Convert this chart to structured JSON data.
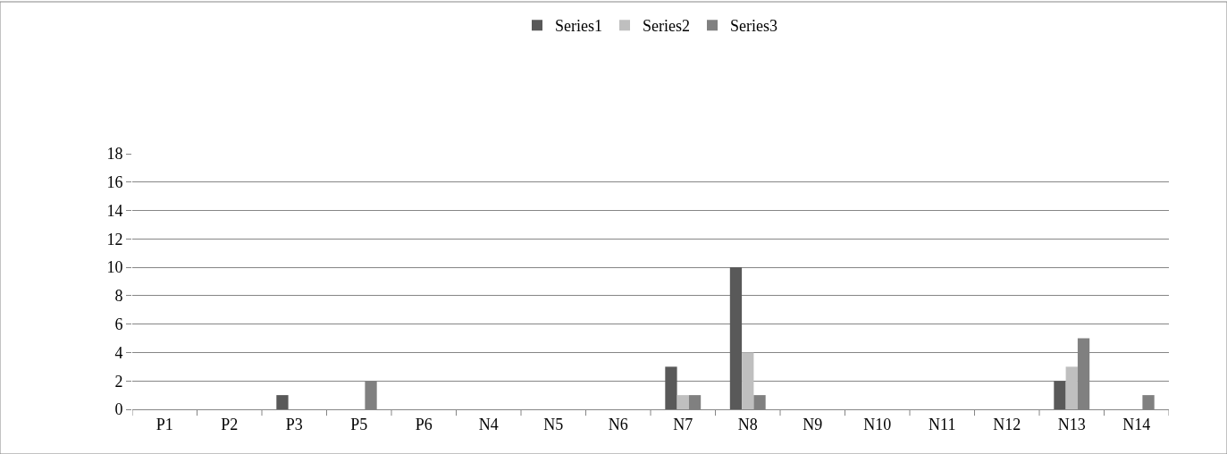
{
  "chart_data": {
    "type": "bar",
    "categories": [
      "P1",
      "P2",
      "P3",
      "P5",
      "P6",
      "N4",
      "N5",
      "N6",
      "N7",
      "N8",
      "N9",
      "N10",
      "N11",
      "N12",
      "N13",
      "N14"
    ],
    "series": [
      {
        "name": "Series1",
        "color": "#595959",
        "values": [
          0,
          0,
          1,
          0,
          0,
          0,
          0,
          0,
          3,
          10,
          0,
          0,
          0,
          0,
          2,
          0
        ]
      },
      {
        "name": "Series2",
        "color": "#bfbfbf",
        "values": [
          0,
          0,
          0,
          0,
          0,
          0,
          0,
          0,
          1,
          4,
          0,
          0,
          0,
          0,
          3,
          0
        ]
      },
      {
        "name": "Series3",
        "color": "#808080",
        "values": [
          0,
          0,
          0,
          2,
          0,
          0,
          0,
          0,
          1,
          1,
          0,
          0,
          0,
          0,
          5,
          1
        ]
      }
    ],
    "ylim": [
      0,
      18
    ],
    "yticks": [
      0,
      2,
      4,
      6,
      8,
      10,
      12,
      14,
      16,
      18
    ],
    "grid": "y",
    "legend": "top"
  }
}
